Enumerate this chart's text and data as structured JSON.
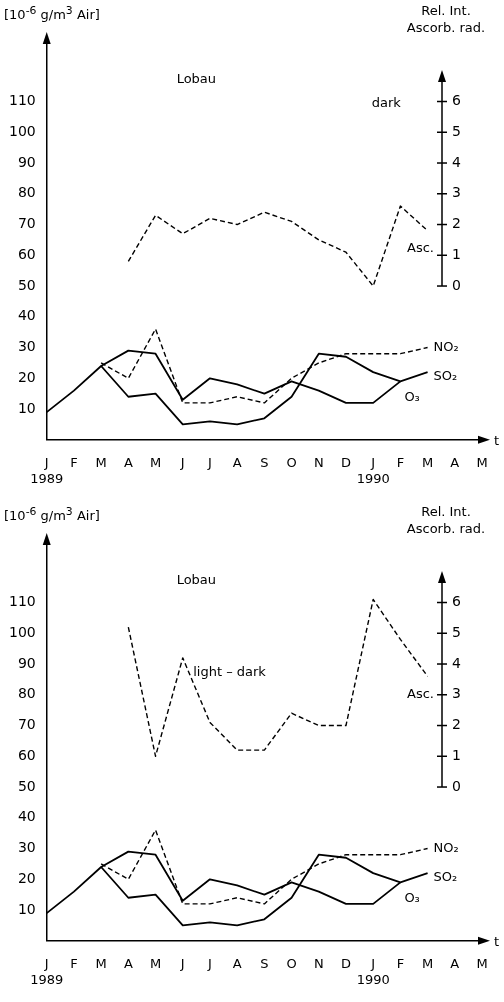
{
  "chart_data": [
    {
      "type": "line",
      "title": "Lobau",
      "xlabel": "t",
      "ylabel": "[10$^{-6}$ g/m$^{3}$ Air]",
      "y2label": "Rel. Int. Ascorb. rad.",
      "categories": [
        "J\n1989",
        "F",
        "M",
        "A",
        "M",
        "J",
        "J",
        "A",
        "S",
        "O",
        "N",
        "D",
        "J\n1990",
        "F",
        "M",
        "A",
        "M"
      ],
      "series": [
        {
          "name": "Asc.",
          "color": "#000000",
          "line_style": "dashed",
          "axis": "y2",
          "values": [
            null,
            null,
            null,
            0.8,
            2.3,
            1.7,
            2.2,
            2.0,
            2.4,
            2.1,
            1.5,
            1.1,
            0.0,
            2.6,
            1.8,
            null,
            null
          ]
        },
        {
          "name": "NO₂",
          "color": "#000000",
          "line_style": "dashed",
          "values": [
            null,
            null,
            25,
            20,
            36,
            12,
            12,
            14,
            12,
            20,
            25,
            28,
            28,
            28,
            30,
            null,
            null
          ]
        },
        {
          "name": "SO₂",
          "color": "#000000",
          "line_style": "solid",
          "values": [
            9,
            16,
            24,
            14,
            15,
            5,
            6,
            5,
            7,
            14,
            28,
            27,
            22,
            19,
            22,
            null,
            null
          ]
        },
        {
          "name": "O₃",
          "color": "#000000",
          "line_style": "solid",
          "values": [
            null,
            null,
            24,
            29,
            28,
            13,
            20,
            18,
            15,
            19,
            16,
            12,
            12,
            19,
            null,
            null,
            null
          ]
        }
      ],
      "ylim": [
        0,
        130
      ],
      "yticks": [
        10,
        20,
        30,
        40,
        50,
        60,
        70,
        80,
        90,
        100,
        110
      ],
      "y2lim": [
        -5,
        8
      ],
      "y2ticks": [
        0,
        1,
        2,
        3,
        4,
        5,
        6
      ],
      "annotations": [
        "dark"
      ],
      "legend": false,
      "grid": false,
      "marker": "none"
    },
    {
      "type": "line",
      "title": "Lobau",
      "xlabel": "t",
      "ylabel": "[10$^{-6}$ g/m$^{3}$ Air]",
      "y2label": "Rel. Int. Ascorb. rad.",
      "categories": [
        "J\n1989",
        "F",
        "M",
        "A",
        "M",
        "J",
        "J",
        "A",
        "S",
        "O",
        "N",
        "D",
        "J\n1990",
        "F",
        "M",
        "A",
        "M"
      ],
      "series": [
        {
          "name": "Asc.",
          "color": "#000000",
          "line_style": "dashed",
          "axis": "y2",
          "values": [
            null,
            null,
            null,
            5.2,
            1.0,
            4.2,
            2.1,
            1.2,
            1.2,
            2.4,
            2.0,
            2.0,
            6.1,
            4.8,
            3.6,
            null,
            null
          ]
        },
        {
          "name": "NO₂",
          "color": "#000000",
          "line_style": "dashed",
          "values": [
            null,
            null,
            25,
            20,
            36,
            12,
            12,
            14,
            12,
            20,
            25,
            28,
            28,
            28,
            30,
            null,
            null
          ]
        },
        {
          "name": "SO₂",
          "color": "#000000",
          "line_style": "solid",
          "values": [
            9,
            16,
            24,
            14,
            15,
            5,
            6,
            5,
            7,
            14,
            28,
            27,
            22,
            19,
            22,
            null,
            null
          ]
        },
        {
          "name": "O₃",
          "color": "#000000",
          "line_style": "solid",
          "values": [
            null,
            null,
            24,
            29,
            28,
            13,
            20,
            18,
            15,
            19,
            16,
            12,
            12,
            19,
            null,
            null,
            null
          ]
        }
      ],
      "ylim": [
        0,
        130
      ],
      "yticks": [
        10,
        20,
        30,
        40,
        50,
        60,
        70,
        80,
        90,
        100,
        110
      ],
      "y2lim": [
        -5,
        8
      ],
      "y2ticks": [
        0,
        1,
        2,
        3,
        4,
        5,
        6
      ],
      "annotations": [
        "light – dark"
      ],
      "legend": false,
      "grid": false,
      "marker": "none"
    }
  ]
}
